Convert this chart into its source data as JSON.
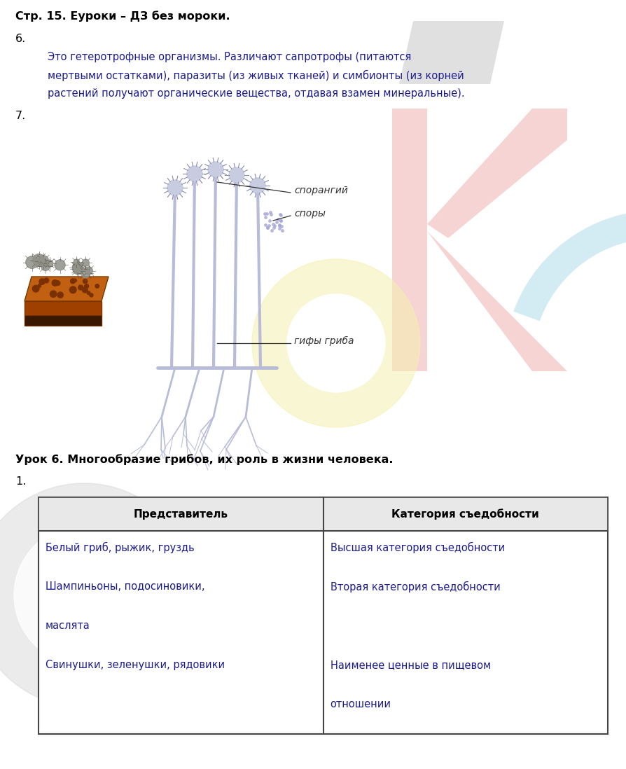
{
  "title": "Стр. 15. Еуроки – ДЗ без мороки.",
  "title_fontsize": 11.5,
  "section6_label": "6.",
  "section6_lines": [
    "Это гетеротрофные организмы. Различают сапротрофы (питаются",
    "мертвыми остатками), паразиты (из живых тканей) и симбионты (из корней",
    "растений получают органические вещества, отдавая взамен минеральные)."
  ],
  "section7_label": "7.",
  "lesson_title": "Урок 6. Многообразие грибов, их роль в жизни человека.",
  "section1_label": "1.",
  "table_headers": [
    "Представитель",
    "Категория съедобности"
  ],
  "table_col1_text": "Белый гриб, рыжик, груздь\n\nШампиньоны, подосиновики,\n\nмаслята\n\nСвинушки, зеленушки, рядовики",
  "table_col2_text": "Высшая категория съедобности\n\nВторая категория съедобности\n\n\n\nНаименее ценные в пищевом\n\nотношении",
  "label_sporangiy": "спорангий",
  "label_spory": "споры",
  "label_giphy": "гифы гриба",
  "body_text_color": "#1a1a8c",
  "label_color": "#333333",
  "table_text_color": "#1a1a8c",
  "bg_color": "#ffffff",
  "font_size_body": 10.5,
  "font_size_label": 11.5,
  "font_size_lesson": 11.5,
  "font_size_table": 10.5
}
